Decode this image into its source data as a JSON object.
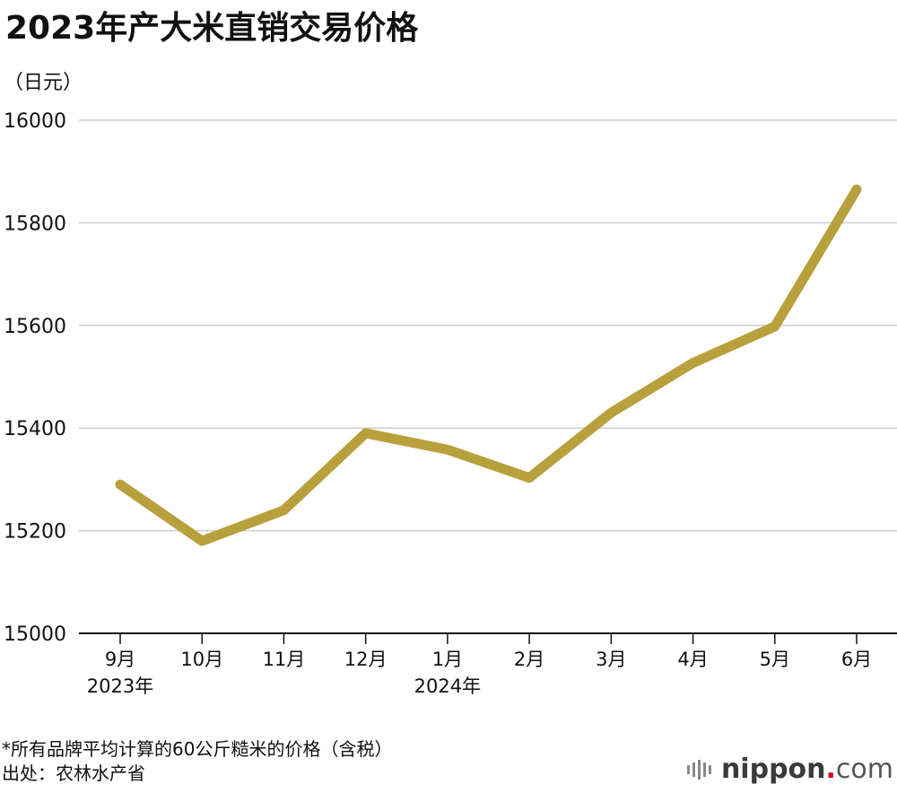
{
  "header": {
    "title": "2023年产大米直销交易价格",
    "unit": "（日元）"
  },
  "footnote": {
    "line1": "*所有品牌平均计算的60公斤糙米的价格（含税）",
    "line2": "出处：农林水产省"
  },
  "logo": {
    "name": "nippon",
    "dot": ".",
    "suffix": "com"
  },
  "chart_data": {
    "type": "line",
    "title": "2023年产大米直销交易价格",
    "ylabel": "（日元）",
    "xlabel": "",
    "ylim": [
      15000,
      16000
    ],
    "yticks": [
      15000,
      15200,
      15400,
      15600,
      15800,
      16000
    ],
    "grid": true,
    "legend": "none",
    "line_color": "#b8a03c",
    "categories": [
      "9月",
      "10月",
      "11月",
      "12月",
      "1月",
      "2月",
      "3月",
      "4月",
      "5月",
      "6月"
    ],
    "year_labels": [
      "2023年",
      "",
      "",
      "",
      "2024年",
      "",
      "",
      "",
      "",
      ""
    ],
    "series": [
      {
        "values": [
          15290,
          15180,
          15240,
          15390,
          15358,
          15303,
          15430,
          15527,
          15598,
          15865
        ]
      }
    ]
  }
}
